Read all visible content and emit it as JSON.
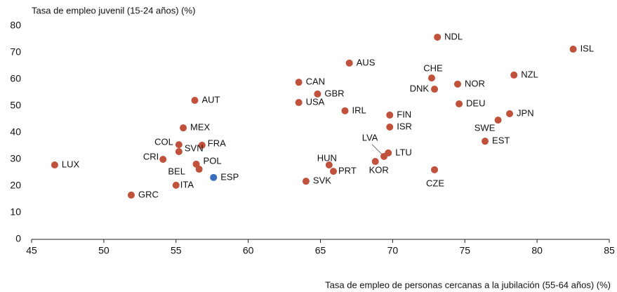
{
  "chart_data": {
    "type": "scatter",
    "ylabel": "Tasa de empleo juvenil (15-24 años) (%)",
    "xlabel": "Tasa de empleo de personas cercanas  a la jubilación (55-64 años) (%)",
    "xlim": [
      45,
      85
    ],
    "xticks": [
      45,
      50,
      55,
      60,
      65,
      70,
      75,
      80,
      85
    ],
    "ylim": [
      0,
      80
    ],
    "yticks": [
      0,
      10,
      20,
      30,
      40,
      50,
      60,
      70,
      80
    ],
    "grid": false,
    "labels": [
      "NDL",
      "ISL",
      "AUS",
      "CHE",
      "NZL",
      "CAN",
      "NOR",
      "DNK",
      "GBR",
      "AUT",
      "USA",
      "DEU",
      "IRL",
      "FIN",
      "JPN",
      "SWE",
      "ISR",
      "MEX",
      "EST",
      "COL",
      "FRA",
      "SVN",
      "LTU",
      "LVA",
      "CRI",
      "KOR",
      "HUN",
      "LUX",
      "POL",
      "BEL",
      "CZE",
      "PRT",
      "ESP",
      "SVK",
      "ITA",
      "GRC"
    ],
    "x": [
      73.1,
      82.5,
      67.0,
      72.7,
      78.4,
      63.5,
      74.5,
      72.9,
      64.8,
      56.3,
      63.5,
      74.6,
      66.7,
      69.8,
      78.1,
      77.3,
      69.8,
      55.5,
      76.4,
      55.2,
      56.8,
      55.2,
      69.7,
      69.4,
      54.1,
      68.8,
      65.6,
      46.6,
      56.4,
      56.6,
      72.9,
      65.9,
      57.6,
      64.0,
      55.0,
      51.9
    ],
    "values": [
      75.8,
      71.3,
      66.1,
      60.5,
      61.6,
      58.9,
      58.2,
      56.3,
      54.5,
      52.1,
      51.3,
      50.8,
      48.2,
      46.6,
      47.1,
      44.7,
      42.1,
      41.8,
      36.8,
      35.5,
      35.3,
      32.9,
      32.4,
      31.1,
      30.0,
      29.2,
      27.9,
      27.9,
      28.2,
      26.3,
      26.1,
      25.5,
      23.2,
      21.8,
      20.3,
      16.6
    ],
    "colors": [
      "#c0513b",
      "#c0513b",
      "#c0513b",
      "#c0513b",
      "#c0513b",
      "#c0513b",
      "#c0513b",
      "#c0513b",
      "#c0513b",
      "#c0513b",
      "#c0513b",
      "#c0513b",
      "#c0513b",
      "#c0513b",
      "#c0513b",
      "#c0513b",
      "#c0513b",
      "#c0513b",
      "#c0513b",
      "#c0513b",
      "#c0513b",
      "#c0513b",
      "#c0513b",
      "#c0513b",
      "#c0513b",
      "#c0513b",
      "#c0513b",
      "#c0513b",
      "#c0513b",
      "#c0513b",
      "#c0513b",
      "#c0513b",
      "#3a6fc0",
      "#c0513b",
      "#c0513b",
      "#c0513b"
    ]
  }
}
